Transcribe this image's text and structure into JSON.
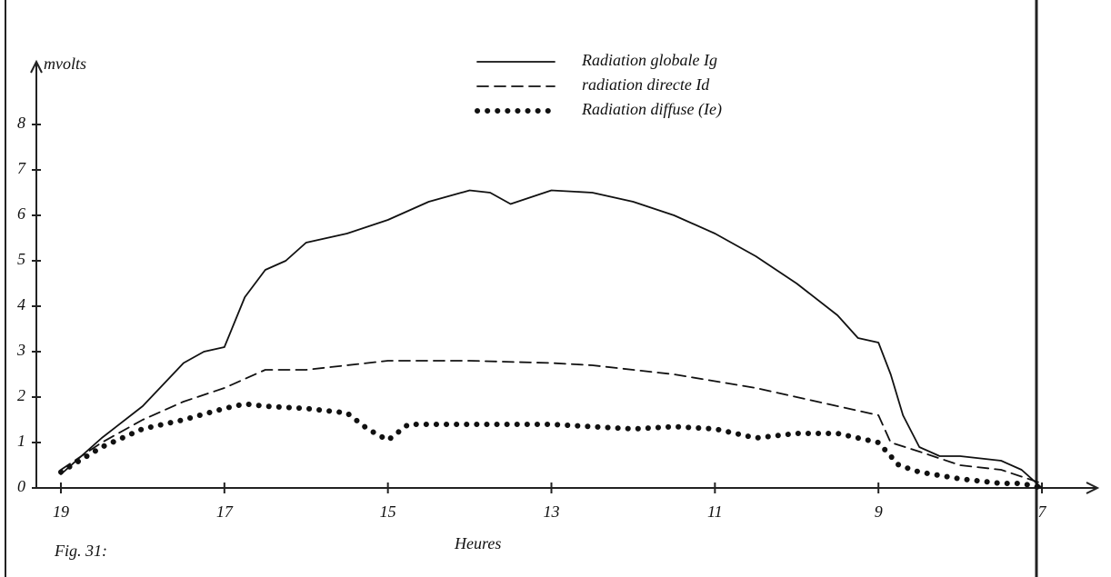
{
  "chart_data": {
    "type": "line",
    "caption": "Fig. 31:",
    "y_label": "mvolts",
    "x_label": "Heures",
    "xlim": [
      19.3,
      6.4
    ],
    "ylim": [
      0,
      9.2
    ],
    "xticks": [
      19,
      17,
      15,
      13,
      11,
      9,
      7
    ],
    "yticks": [
      0,
      1,
      2,
      3,
      4,
      5,
      6,
      7,
      8
    ],
    "series": [
      {
        "name": "Radiation globale Ig",
        "color": "#111111",
        "style": "solid",
        "x": [
          19,
          18.5,
          18,
          17.5,
          17.25,
          17,
          16.75,
          16.5,
          16.25,
          16,
          15.5,
          15,
          14.5,
          14,
          13.75,
          13.5,
          13.25,
          13,
          12.5,
          12,
          11.5,
          11,
          10.5,
          10,
          9.5,
          9.25,
          9,
          8.85,
          8.7,
          8.5,
          8.25,
          8,
          7.5,
          7.25,
          7
        ],
        "values": [
          0.3,
          1.1,
          1.8,
          2.75,
          3.0,
          3.1,
          4.2,
          4.8,
          5.0,
          5.4,
          5.6,
          5.9,
          6.3,
          6.55,
          6.5,
          6.25,
          6.4,
          6.55,
          6.5,
          6.3,
          6.0,
          5.6,
          5.1,
          4.5,
          3.8,
          3.3,
          3.2,
          2.5,
          1.6,
          0.9,
          0.7,
          0.7,
          0.6,
          0.4,
          0
        ]
      },
      {
        "name": "radiation directe Id",
        "color": "#111111",
        "style": "dashed",
        "x": [
          19,
          18.5,
          18,
          17.5,
          17,
          16.5,
          16,
          15.5,
          15,
          14,
          13,
          12.5,
          12,
          11.5,
          11,
          10.5,
          10,
          9.5,
          9,
          8.85,
          8.5,
          8,
          7.5,
          7
        ],
        "values": [
          0.4,
          1.0,
          1.5,
          1.9,
          2.2,
          2.6,
          2.6,
          2.7,
          2.8,
          2.8,
          2.75,
          2.7,
          2.6,
          2.5,
          2.35,
          2.2,
          2.0,
          1.8,
          1.6,
          1.0,
          0.8,
          0.5,
          0.4,
          0.1
        ]
      },
      {
        "name": "Radiation diffuse (Ie)",
        "color": "#111111",
        "style": "dotted",
        "x": [
          19,
          18.5,
          18,
          17.5,
          17,
          16.75,
          16.5,
          16,
          15.5,
          15.25,
          15,
          14.75,
          14.5,
          14,
          13.5,
          13,
          12.5,
          12,
          11.5,
          11,
          10.5,
          10,
          9.5,
          9,
          8.75,
          8.5,
          8,
          7.5,
          7.25,
          7
        ],
        "values": [
          0.35,
          0.9,
          1.3,
          1.5,
          1.75,
          1.85,
          1.8,
          1.75,
          1.65,
          1.3,
          1.05,
          1.4,
          1.4,
          1.4,
          1.4,
          1.4,
          1.35,
          1.3,
          1.35,
          1.3,
          1.1,
          1.2,
          1.2,
          1.0,
          0.5,
          0.35,
          0.2,
          0.1,
          0.1,
          0
        ]
      }
    ]
  }
}
